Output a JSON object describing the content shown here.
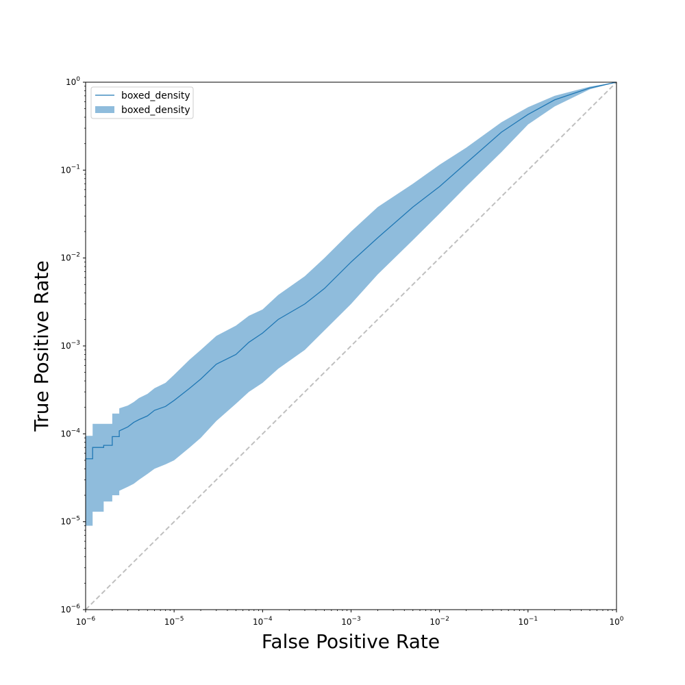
{
  "chart_data": {
    "type": "line",
    "title": "",
    "xlabel": "False Positive Rate",
    "ylabel": "True Positive Rate",
    "xscale": "log",
    "yscale": "log",
    "xlim": [
      1e-06,
      1
    ],
    "ylim": [
      1e-06,
      1
    ],
    "x_ticks": [
      {
        "value": 1e-06,
        "base": "10",
        "exp": "−6"
      },
      {
        "value": 1e-05,
        "base": "10",
        "exp": "−5"
      },
      {
        "value": 0.0001,
        "base": "10",
        "exp": "−4"
      },
      {
        "value": 0.001,
        "base": "10",
        "exp": "−3"
      },
      {
        "value": 0.01,
        "base": "10",
        "exp": "−2"
      },
      {
        "value": 0.1,
        "base": "10",
        "exp": "−1"
      },
      {
        "value": 1,
        "base": "10",
        "exp": "0"
      }
    ],
    "y_ticks": [
      {
        "value": 1e-06,
        "base": "10",
        "exp": "−6"
      },
      {
        "value": 1e-05,
        "base": "10",
        "exp": "−5"
      },
      {
        "value": 0.0001,
        "base": "10",
        "exp": "−4"
      },
      {
        "value": 0.001,
        "base": "10",
        "exp": "−3"
      },
      {
        "value": 0.01,
        "base": "10",
        "exp": "−2"
      },
      {
        "value": 0.1,
        "base": "10",
        "exp": "−1"
      },
      {
        "value": 1,
        "base": "10",
        "exp": "0"
      }
    ],
    "grid": false,
    "legend": {
      "placement": "upper-left",
      "entries": [
        {
          "label": "boxed_density",
          "kind": "line"
        },
        {
          "label": "boxed_density",
          "kind": "patch"
        }
      ]
    },
    "colors": {
      "line": "#1f77b4",
      "band": "#8fbcdc",
      "diagonal": "#bfbfbf"
    },
    "series": [
      {
        "name": "boxed_density",
        "kind": "line",
        "x": [
          1e-06,
          1.2e-06,
          1.2e-06,
          1.6e-06,
          1.6e-06,
          2e-06,
          2e-06,
          2.4e-06,
          2.4e-06,
          3e-06,
          3.5e-06,
          4e-06,
          5e-06,
          6e-06,
          8e-06,
          1e-05,
          1.5e-05,
          2e-05,
          3e-05,
          5e-05,
          7e-05,
          0.0001,
          0.00015,
          0.0003,
          0.0005,
          0.001,
          0.002,
          0.005,
          0.01,
          0.02,
          0.05,
          0.1,
          0.2,
          0.5,
          1
        ],
        "y": [
          5.2e-05,
          5.2e-05,
          7e-05,
          7e-05,
          7.4e-05,
          7.4e-05,
          9.3e-05,
          9.3e-05,
          0.000108,
          0.00012,
          0.000135,
          0.000145,
          0.00016,
          0.000185,
          0.000205,
          0.00024,
          0.00033,
          0.00042,
          0.00062,
          0.0008,
          0.0011,
          0.0014,
          0.002,
          0.003,
          0.0045,
          0.009,
          0.017,
          0.038,
          0.065,
          0.12,
          0.27,
          0.43,
          0.63,
          0.86,
          1
        ]
      },
      {
        "name": "boxed_density",
        "kind": "band",
        "x": [
          1e-06,
          1.2e-06,
          1.2e-06,
          1.6e-06,
          1.6e-06,
          2e-06,
          2e-06,
          2.4e-06,
          2.4e-06,
          3e-06,
          3.5e-06,
          4e-06,
          5e-06,
          6e-06,
          8e-06,
          1e-05,
          1.5e-05,
          2e-05,
          3e-05,
          5e-05,
          7e-05,
          0.0001,
          0.00015,
          0.0003,
          0.0005,
          0.001,
          0.002,
          0.005,
          0.01,
          0.02,
          0.05,
          0.1,
          0.2,
          0.5,
          1
        ],
        "y_low": [
          9e-06,
          9e-06,
          1.3e-05,
          1.3e-05,
          1.7e-05,
          1.7e-05,
          2e-05,
          2e-05,
          2.25e-05,
          2.5e-05,
          2.7e-05,
          3e-05,
          3.5e-05,
          4e-05,
          4.5e-05,
          5e-05,
          7e-05,
          9e-05,
          0.00014,
          0.00022,
          0.0003,
          0.00038,
          0.00055,
          0.0009,
          0.0015,
          0.003,
          0.0065,
          0.016,
          0.032,
          0.065,
          0.16,
          0.33,
          0.53,
          0.83,
          1
        ],
        "y_high": [
          9.5e-05,
          9.5e-05,
          0.00013,
          0.00013,
          0.00013,
          0.00013,
          0.00017,
          0.00017,
          0.000195,
          0.00021,
          0.00023,
          0.000255,
          0.000285,
          0.00033,
          0.00038,
          0.00047,
          0.0007,
          0.0009,
          0.0013,
          0.0017,
          0.0022,
          0.0026,
          0.0038,
          0.0062,
          0.01,
          0.02,
          0.038,
          0.07,
          0.115,
          0.18,
          0.35,
          0.52,
          0.7,
          0.89,
          1
        ]
      },
      {
        "name": "",
        "kind": "reference-diagonal",
        "x": [
          1e-06,
          1
        ],
        "y": [
          1e-06,
          1
        ]
      }
    ]
  }
}
